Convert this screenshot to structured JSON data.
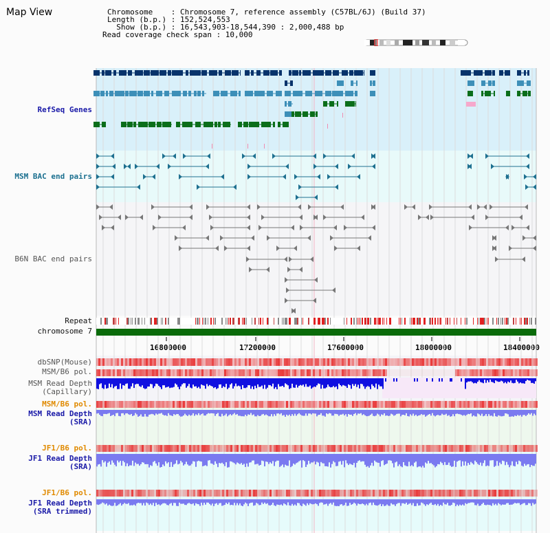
{
  "header": {
    "title": "Map View",
    "info_lines": [
      "Chromosome    : Chromosome 7, reference assembly (C57BL/6J) (Build 37)",
      "Length (b.p.) : 152,524,553",
      "  Show (b.p.) : 16,543,903-18,544,390 : 2,000,488 bp",
      "Read coverage check span : 10,000"
    ]
  },
  "tracks": {
    "refseq": "RefSeq Genes",
    "msm_bac": "MSM BAC end pairs",
    "b6n_bac": "B6N BAC end pairs",
    "repeat": "Repeat",
    "chromosome": "chromosome 7",
    "dbsnp": "dbSNP(Mouse)",
    "msm_b6_pol_1": "MSM/B6 pol.",
    "msm_read_depth_cap": "MSM Read Depth\n(Capillary)",
    "msm_b6_pol_2": "MSM/B6 pol.",
    "msm_read_depth_sra": "MSM Read Depth\n(SRA)",
    "jf1_b6_pol_1": "JF1/B6 pol.",
    "jf1_read_depth_sra": "JF1 Read Depth\n(SRA)",
    "jf1_b6_pol_2": "JF1/B6 pol.",
    "jf1_read_depth_trim": "JF1 Read Depth\n(SRA trimmed)"
  },
  "axis": {
    "ticks": [
      "16800000",
      "17200000",
      "17600000",
      "18000000",
      "18400000"
    ]
  },
  "colors": {
    "refseq_bg": "#d9f0fa",
    "bac_bg": "#e8fafa",
    "gene_dark": "#08336b",
    "gene_mid": "#3d8fb8",
    "gene_green": "#0b6e1a",
    "bac_teal": "#1e7090",
    "chrom_green": "#0a6b0a",
    "depth_blue": "#1010e0",
    "depth_light": "#7a7af0",
    "pol_red": "#e83030"
  }
}
